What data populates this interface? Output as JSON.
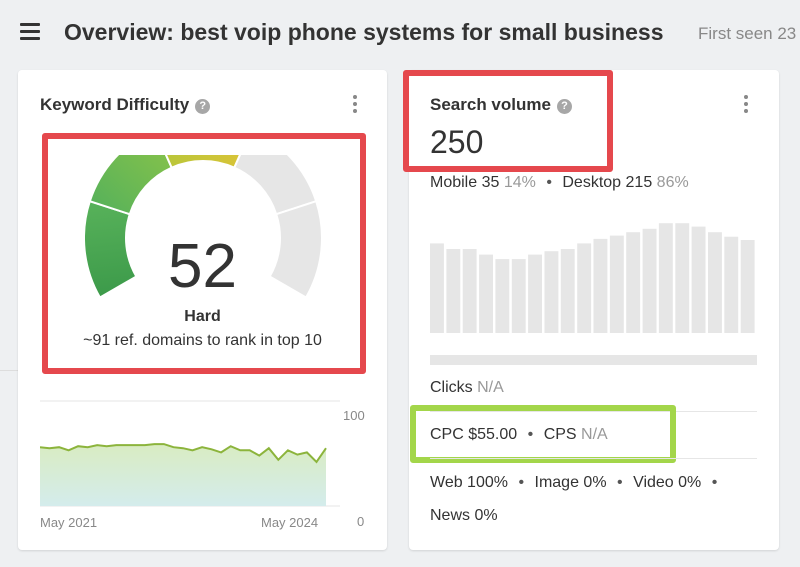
{
  "header": {
    "title": "Overview: best voip phone systems for small business",
    "first_seen": "First seen 23"
  },
  "keyword_difficulty": {
    "title": "Keyword Difficulty",
    "score": "52",
    "score_value": 52,
    "level": "Hard",
    "description": "~91 ref. domains to rank in top 10",
    "trend": {
      "y_max_label": "100",
      "y_min_label": "0",
      "x_start_label": "May 2021",
      "x_end_label": "May 2024",
      "values": [
        56,
        55,
        56,
        53,
        57,
        56,
        58,
        57,
        58,
        58,
        58,
        58,
        59,
        59,
        56,
        55,
        53,
        56,
        54,
        51,
        57,
        53,
        53,
        48,
        55,
        44,
        53,
        49,
        51,
        42,
        55
      ]
    }
  },
  "search_volume": {
    "title": "Search volume",
    "value": "250",
    "mobile_label": "Mobile 35",
    "mobile_pct": "14%",
    "desktop_label": "Desktop 215",
    "desktop_pct": "86%",
    "monthly_bars": [
      0.8,
      0.75,
      0.75,
      0.7,
      0.66,
      0.66,
      0.7,
      0.73,
      0.75,
      0.8,
      0.84,
      0.87,
      0.9,
      0.93,
      0.98,
      0.98,
      0.95,
      0.9,
      0.86,
      0.83
    ],
    "clicks_label": "Clicks",
    "clicks_value": "N/A",
    "cpc_label": "CPC $55.00",
    "cps_label": "CPS",
    "cps_value": "N/A",
    "channels": [
      "Web 100%",
      "Image 0%",
      "Video 0%",
      "News 0%"
    ]
  },
  "colors": {
    "highlight_red": "#e5484d",
    "highlight_green": "#a3d64a",
    "gauge_empty": "#e6e6e6",
    "trend_line": "#8cb43c"
  }
}
